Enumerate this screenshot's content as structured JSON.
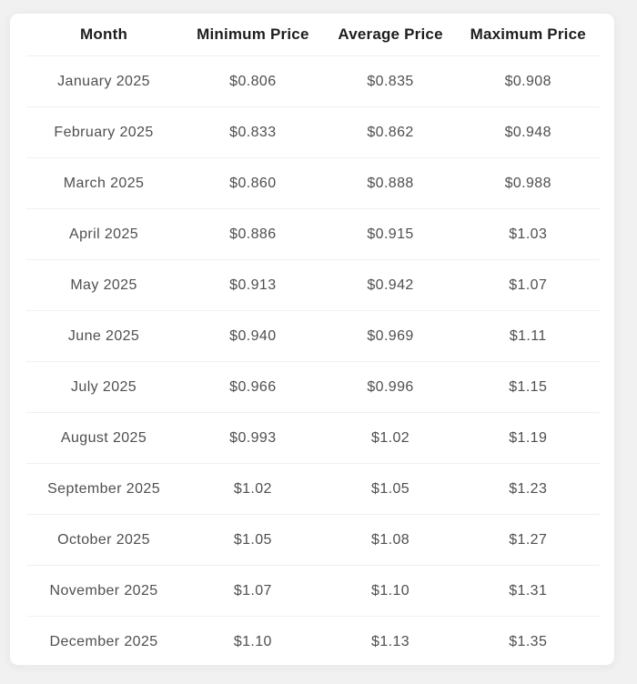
{
  "colors": {
    "page_background": "#f1f1f2",
    "card_background": "#ffffff",
    "header_text": "#1e1e1e",
    "body_text": "#4f4f4f",
    "divider": "#f1f1f1"
  },
  "chart_data": {
    "type": "table",
    "title": "",
    "columns": [
      "Month",
      "Minimum Price",
      "Average Price",
      "Maximum Price"
    ],
    "rows": [
      [
        "January 2025",
        "$0.806",
        "$0.835",
        "$0.908"
      ],
      [
        "February 2025",
        "$0.833",
        "$0.862",
        "$0.948"
      ],
      [
        "March 2025",
        "$0.860",
        "$0.888",
        "$0.988"
      ],
      [
        "April 2025",
        "$0.886",
        "$0.915",
        "$1.03"
      ],
      [
        "May 2025",
        "$0.913",
        "$0.942",
        "$1.07"
      ],
      [
        "June 2025",
        "$0.940",
        "$0.969",
        "$1.11"
      ],
      [
        "July 2025",
        "$0.966",
        "$0.996",
        "$1.15"
      ],
      [
        "August 2025",
        "$0.993",
        "$1.02",
        "$1.19"
      ],
      [
        "September 2025",
        "$1.02",
        "$1.05",
        "$1.23"
      ],
      [
        "October 2025",
        "$1.05",
        "$1.08",
        "$1.27"
      ],
      [
        "November 2025",
        "$1.07",
        "$1.10",
        "$1.31"
      ],
      [
        "December 2025",
        "$1.10",
        "$1.13",
        "$1.35"
      ]
    ]
  }
}
